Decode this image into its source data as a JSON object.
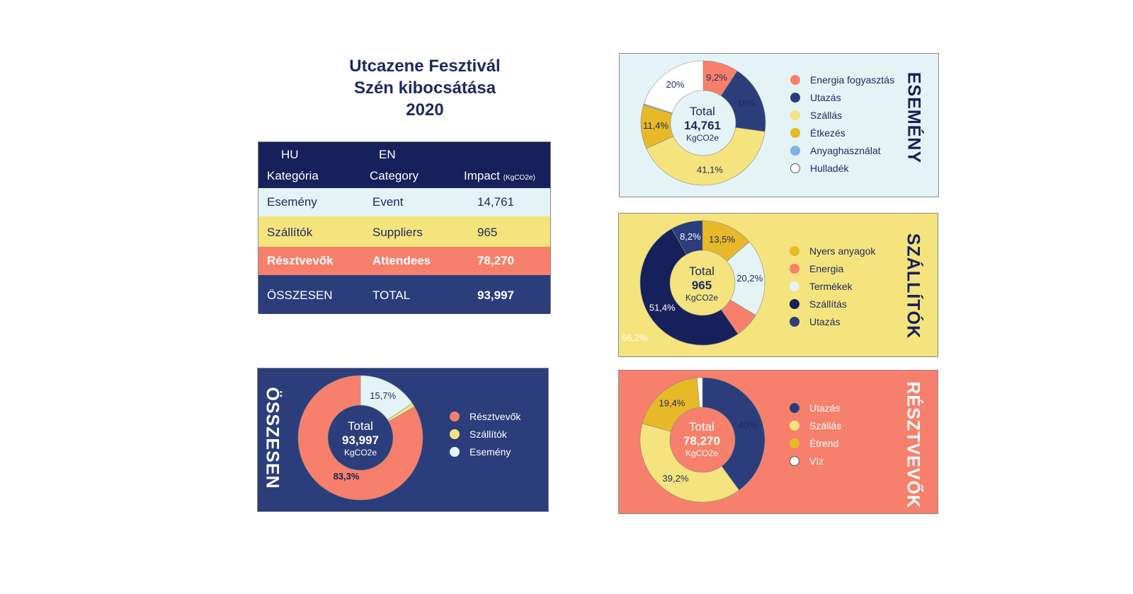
{
  "header": {
    "title_line1": "Utcazene Fesztivál",
    "title_line2": "Szén kibocsátása",
    "title_line3": "2020"
  },
  "summary_table": {
    "col_hu": "HU",
    "col_en": "EN",
    "col_category_hu": "Kategória",
    "col_category_en": "Category",
    "col_impact": "Impact",
    "col_impact_unit": "(KgCO2e)",
    "rows": [
      {
        "hu": "Esemény",
        "en": "Event",
        "value": "14,761"
      },
      {
        "hu": "Szállítók",
        "en": "Suppliers",
        "value": "965"
      },
      {
        "hu": "Résztvevők",
        "en": "Attendees",
        "value": "78,270"
      },
      {
        "hu": "ÖSSZESEN",
        "en": "TOTAL",
        "value": "93,997"
      }
    ]
  },
  "colors": {
    "navy": "#16205a",
    "blue": "#2c3d7b",
    "salmon": "#f6806b",
    "yellow": "#f5e47e",
    "gold": "#e7b928",
    "lightblue": "#7eb3e3",
    "paleblue": "#e4f3f5",
    "white": "#ffffff"
  },
  "chart_data": [
    {
      "type": "pie",
      "panel_label": "ESEMÉNY",
      "center": {
        "line1": "Total",
        "line2": "14,761",
        "line3": "KgCO2e"
      },
      "slices": [
        {
          "name": "Energia fogyasztás",
          "value": 9.2,
          "label": "9,2%",
          "color": "#f6806b"
        },
        {
          "name": "Utazás",
          "value": 18.0,
          "label": "18%",
          "color": "#2c3d7b"
        },
        {
          "name": "Szállás",
          "value": 41.1,
          "label": "41,1%",
          "color": "#f5e47e"
        },
        {
          "name": "Étkezés",
          "value": 11.4,
          "label": "11,4%",
          "color": "#e7b928"
        },
        {
          "name": "Anyaghasználat",
          "value": 0.3,
          "label": "",
          "color": "#7eb3e3"
        },
        {
          "name": "Hulladék",
          "value": 20.0,
          "label": "20%",
          "color": "#ffffff"
        }
      ]
    },
    {
      "type": "pie",
      "panel_label": "SZÁLLÍTÓK",
      "center": {
        "line1": "Total",
        "line2": "965",
        "line3": "KgCO2e"
      },
      "slices": [
        {
          "name": "Nyers anyagok",
          "value": 13.5,
          "label": "13,5%",
          "color": "#e7b928"
        },
        {
          "name": "Termékek",
          "value": 20.2,
          "label": "20,2%",
          "color": "#e4f3f5"
        },
        {
          "name": "Energia",
          "value": 6.6,
          "label": "",
          "color": "#f6806b"
        },
        {
          "name": "Szállítás",
          "value": 51.4,
          "label": "51,4%",
          "color": "#16205a"
        },
        {
          "name": "Utazás",
          "value": 8.2,
          "label": "8,2%",
          "color": "#2c3d7b"
        }
      ],
      "legend_order": [
        "Nyers anyagok",
        "Energia",
        "Termékek",
        "Szállítás",
        "Utazás"
      ],
      "extra_label": "66,2%"
    },
    {
      "type": "pie",
      "panel_label": "ÖSSZESEN",
      "center": {
        "line1": "Total",
        "line2": "93,997",
        "line3": "KgCO2e"
      },
      "slices": [
        {
          "name": "Esemény",
          "value": 15.7,
          "label": "15,7%",
          "color": "#e4f3f5"
        },
        {
          "name": "Szállítók",
          "value": 1.0,
          "label": "",
          "color": "#f5e47e"
        },
        {
          "name": "Résztvevők",
          "value": 83.3,
          "label": "83,3%",
          "color": "#f6806b"
        }
      ],
      "legend_order": [
        "Résztvevők",
        "Szállítók",
        "Esemény"
      ]
    },
    {
      "type": "pie",
      "panel_label": "RÉSZTVEVŐK",
      "center": {
        "line1": "Total",
        "line2": "78,270",
        "line3": "KgCO2e"
      },
      "slices": [
        {
          "name": "Utazás",
          "value": 40.0,
          "label": "40%",
          "color": "#2c3d7b"
        },
        {
          "name": "Szállás",
          "value": 39.2,
          "label": "39,2%",
          "color": "#f5e47e"
        },
        {
          "name": "Étrend",
          "value": 19.4,
          "label": "19,4%",
          "color": "#e7b928"
        },
        {
          "name": "Víz",
          "value": 1.4,
          "label": "",
          "color": "#ffffff"
        }
      ]
    }
  ]
}
